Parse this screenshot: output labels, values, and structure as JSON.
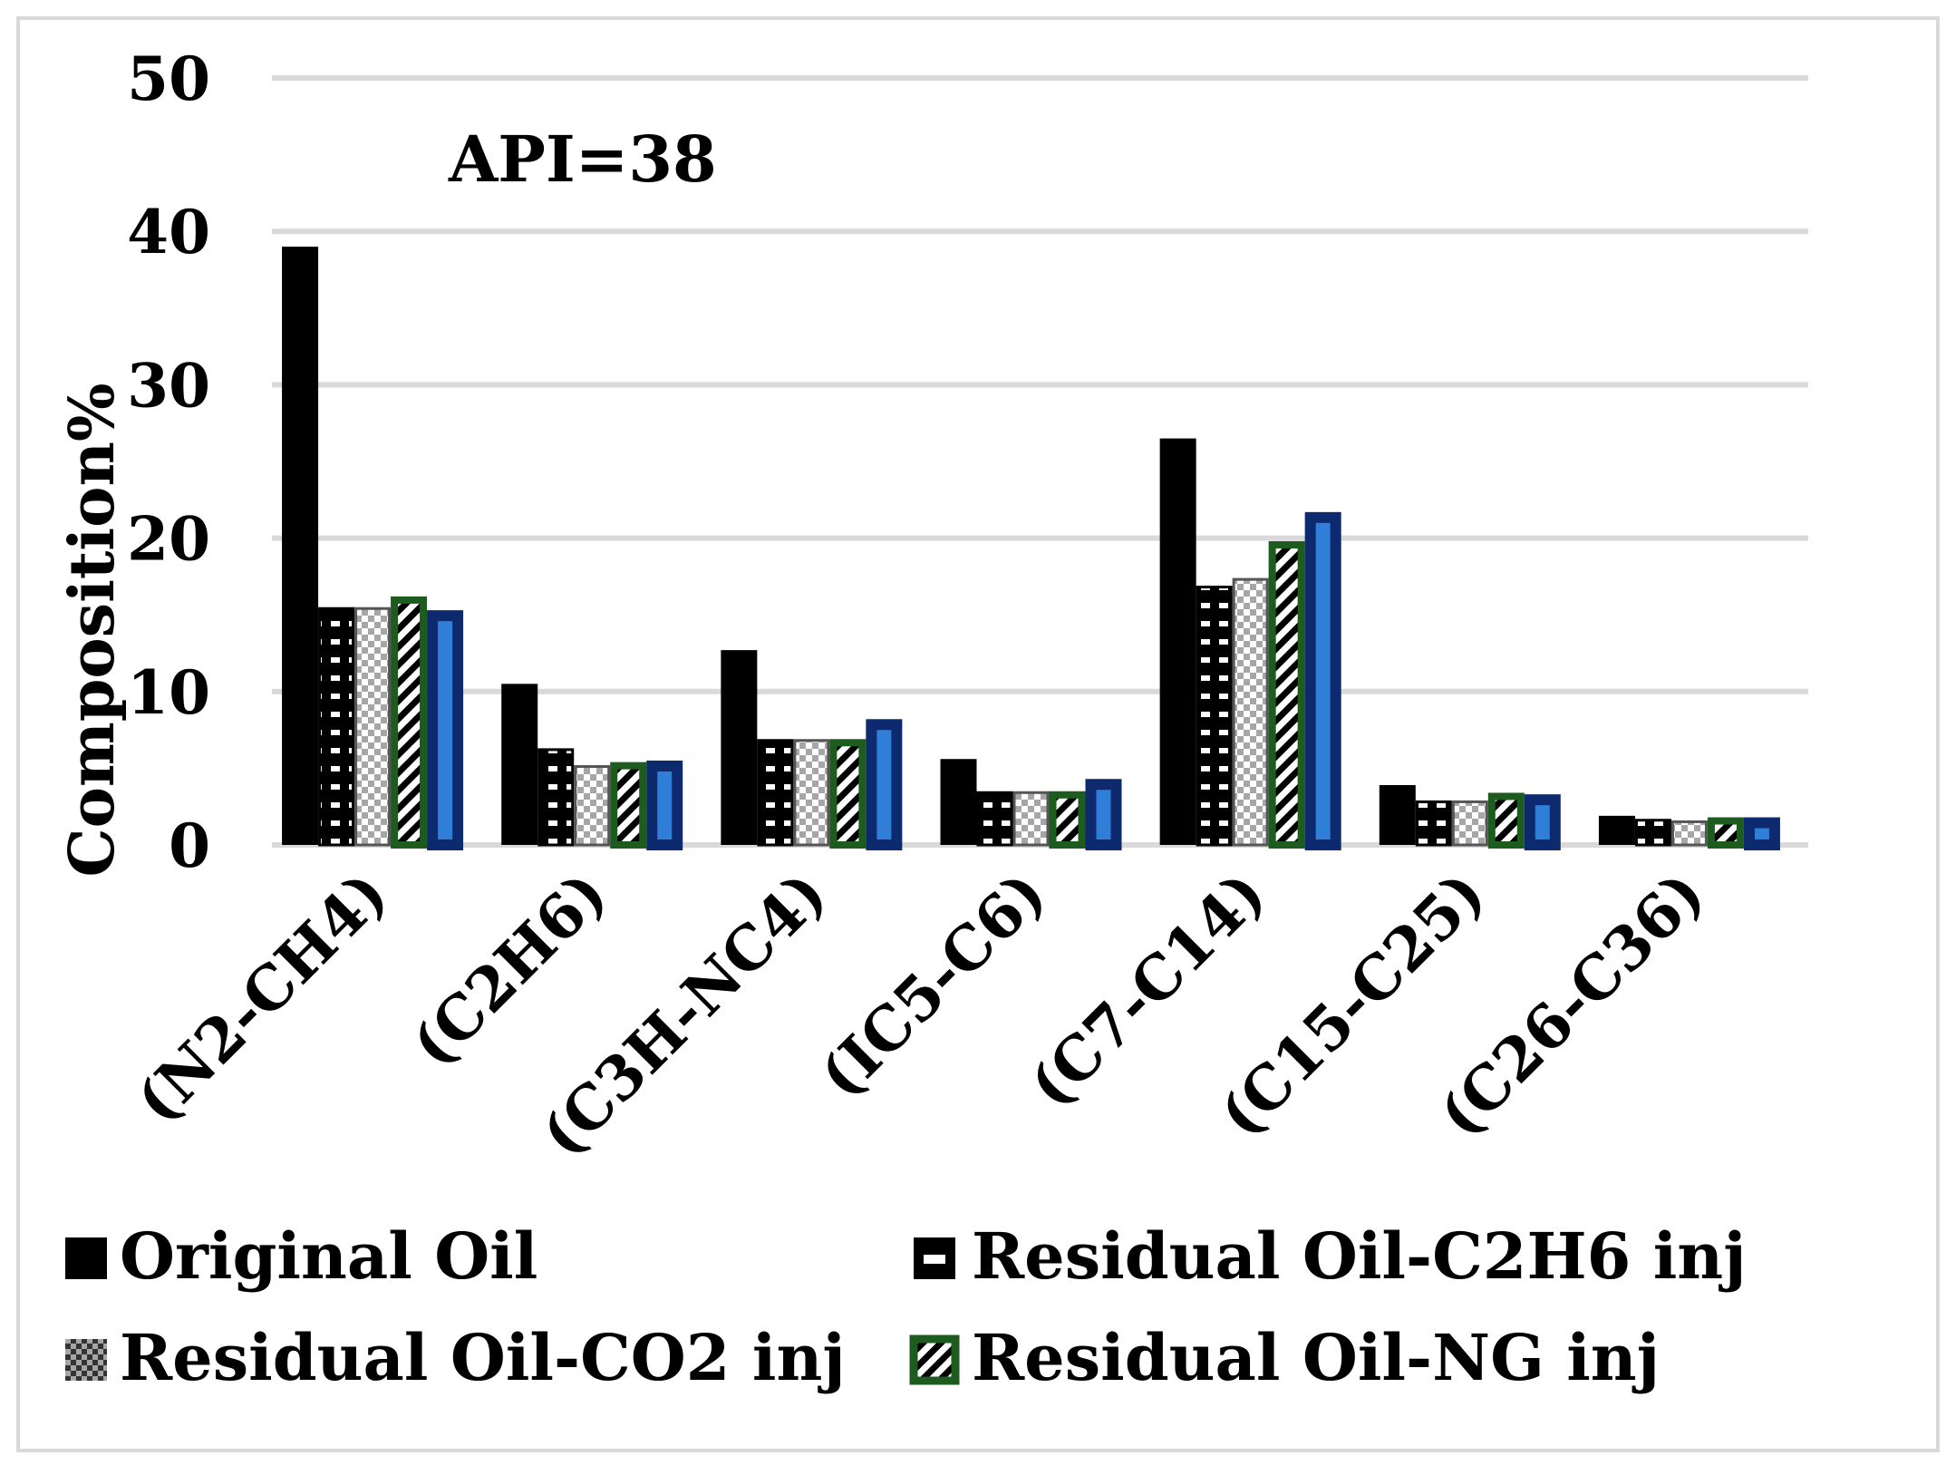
{
  "colors": {
    "original": "#000000",
    "c2h6": "#000000",
    "co2": "#a6a6a6",
    "ng": "#1e5b1e",
    "blue_fill": "#2f7fd9",
    "blue_edge": "#0d2a6e",
    "grid": "#d9d9d9",
    "frame": "#d9d9d9"
  },
  "chart_data": {
    "type": "bar",
    "annotation": "API=38",
    "ylabel": "Composition%",
    "xlabel": "",
    "ylim": [
      0,
      50
    ],
    "yticks": [
      0,
      10,
      20,
      30,
      40,
      50
    ],
    "grid": true,
    "legend_position": "bottom",
    "categories": [
      "(N2-CH4)",
      "(C2H6)",
      "(C3H-NC4)",
      "(IC5-C6)",
      "(C7-C14)",
      "(C15-C25)",
      "(C26-C36)"
    ],
    "series": [
      {
        "name": "Original Oil",
        "pattern": "solid-black",
        "values": [
          39.0,
          10.5,
          12.7,
          5.6,
          26.5,
          3.9,
          1.9
        ]
      },
      {
        "name": "Residual Oil-C2H6 inj",
        "pattern": "black-dashes",
        "values": [
          15.5,
          6.3,
          6.9,
          3.5,
          16.9,
          2.9,
          1.7
        ]
      },
      {
        "name": "Residual Oil-CO2 inj",
        "pattern": "grey-checker",
        "values": [
          15.5,
          5.2,
          6.9,
          3.5,
          17.4,
          2.9,
          1.6
        ]
      },
      {
        "name": "Residual Oil-NG inj",
        "pattern": "green-diagonal",
        "values": [
          16.2,
          5.4,
          6.9,
          3.5,
          19.8,
          3.4,
          1.8
        ]
      },
      {
        "name": "",
        "pattern": "blue-outlined",
        "values": [
          15.3,
          5.5,
          8.2,
          4.3,
          21.7,
          3.3,
          1.8
        ]
      }
    ],
    "legend_entries": [
      "Original Oil",
      "Residual Oil-C2H6 inj",
      "Residual Oil-CO2 inj",
      "Residual Oil-NG inj"
    ]
  }
}
